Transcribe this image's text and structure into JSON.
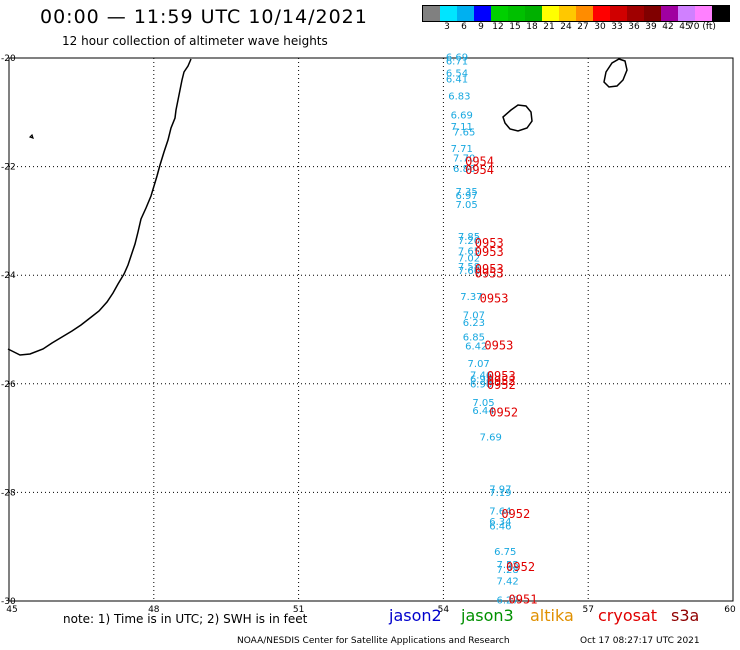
{
  "header": {
    "title": "00:00 — 11:59 UTC 10/14/2021",
    "subtitle": "12 hour collection of altimeter wave heights"
  },
  "scale": {
    "colors": [
      "#808080",
      "#00e5ff",
      "#00b0f0",
      "#0000ff",
      "#00d000",
      "#00c000",
      "#00b000",
      "#ffff00",
      "#ffc800",
      "#ff8c00",
      "#ff0000",
      "#d00000",
      "#a00000",
      "#800000",
      "#a000a0",
      "#d080ff",
      "#ff80ff",
      "#000000"
    ],
    "labels": [
      "3",
      "6",
      "9",
      "12",
      "15",
      "18",
      "21",
      "24",
      "27",
      "30",
      "33",
      "36",
      "39",
      "42",
      "45",
      "70 (ft)"
    ]
  },
  "axes": {
    "x_labels": [
      "45",
      "48",
      "51",
      "54",
      "57",
      "60"
    ],
    "y_labels": [
      "-20",
      "-22",
      "-24",
      "-26",
      "-28",
      "-30"
    ]
  },
  "map": {
    "lon_range": [
      45,
      60
    ],
    "lat_range": [
      -30,
      -20
    ],
    "swh_color": "#18a8e0",
    "time_color": "#e00000",
    "swh": [
      {
        "lon": 54.05,
        "lat": -20.05,
        "v": "6.69"
      },
      {
        "lon": 54.05,
        "lat": -20.12,
        "v": "6.71"
      },
      {
        "lon": 54.05,
        "lat": -20.34,
        "v": "6.54"
      },
      {
        "lon": 54.05,
        "lat": -20.45,
        "v": "6.41"
      },
      {
        "lon": 54.1,
        "lat": -20.76,
        "v": "6.83"
      },
      {
        "lon": 54.15,
        "lat": -21.11,
        "v": "6.69"
      },
      {
        "lon": 54.15,
        "lat": -21.33,
        "v": "7.11"
      },
      {
        "lon": 54.2,
        "lat": -21.43,
        "v": "7.65"
      },
      {
        "lon": 54.15,
        "lat": -21.73,
        "v": "7.71"
      },
      {
        "lon": 54.2,
        "lat": -21.91,
        "v": "7.70"
      },
      {
        "lon": 54.2,
        "lat": -22.1,
        "v": "6.86"
      },
      {
        "lon": 54.25,
        "lat": -22.52,
        "v": "7.35"
      },
      {
        "lon": 54.25,
        "lat": -22.6,
        "v": "6.97"
      },
      {
        "lon": 54.25,
        "lat": -22.76,
        "v": "7.05"
      },
      {
        "lon": 54.3,
        "lat": -23.35,
        "v": "7.85"
      },
      {
        "lon": 54.3,
        "lat": -23.43,
        "v": "7.20"
      },
      {
        "lon": 54.3,
        "lat": -23.62,
        "v": "7.65"
      },
      {
        "lon": 54.3,
        "lat": -23.75,
        "v": "7.02"
      },
      {
        "lon": 54.3,
        "lat": -23.9,
        "v": "7.58"
      },
      {
        "lon": 54.3,
        "lat": -23.98,
        "v": "7.66"
      },
      {
        "lon": 54.35,
        "lat": -24.46,
        "v": "7.37"
      },
      {
        "lon": 54.4,
        "lat": -24.8,
        "v": "7.07"
      },
      {
        "lon": 54.4,
        "lat": -24.94,
        "v": "6.23"
      },
      {
        "lon": 54.4,
        "lat": -25.2,
        "v": "6.85"
      },
      {
        "lon": 54.45,
        "lat": -25.37,
        "v": "6.42"
      },
      {
        "lon": 54.5,
        "lat": -25.69,
        "v": "7.07"
      },
      {
        "lon": 54.55,
        "lat": -25.9,
        "v": "7.46"
      },
      {
        "lon": 54.55,
        "lat": -25.98,
        "v": "6.98"
      },
      {
        "lon": 54.55,
        "lat": -26.07,
        "v": "6.90"
      },
      {
        "lon": 54.6,
        "lat": -26.41,
        "v": "7.05"
      },
      {
        "lon": 54.6,
        "lat": -26.56,
        "v": "6.44"
      },
      {
        "lon": 54.75,
        "lat": -27.04,
        "v": "7.69"
      },
      {
        "lon": 54.95,
        "lat": -28.0,
        "v": "7.97"
      },
      {
        "lon": 54.95,
        "lat": -28.07,
        "v": "7.19"
      },
      {
        "lon": 54.95,
        "lat": -28.41,
        "v": "7.64"
      },
      {
        "lon": 54.95,
        "lat": -28.6,
        "v": "6.34"
      },
      {
        "lon": 54.95,
        "lat": -28.68,
        "v": "6.46"
      },
      {
        "lon": 55.05,
        "lat": -29.15,
        "v": "6.75"
      },
      {
        "lon": 55.1,
        "lat": -29.39,
        "v": "7.55"
      },
      {
        "lon": 55.1,
        "lat": -29.48,
        "v": "7.28"
      },
      {
        "lon": 55.1,
        "lat": -29.7,
        "v": "7.42"
      },
      {
        "lon": 55.1,
        "lat": -30.05,
        "v": "6.27"
      }
    ],
    "times": [
      {
        "lon": 54.45,
        "lat": -21.98,
        "v": "0954"
      },
      {
        "lon": 54.45,
        "lat": -22.14,
        "v": "0954"
      },
      {
        "lon": 54.65,
        "lat": -23.48,
        "v": "0953"
      },
      {
        "lon": 54.65,
        "lat": -23.65,
        "v": "0953"
      },
      {
        "lon": 54.65,
        "lat": -23.96,
        "v": "0953"
      },
      {
        "lon": 54.65,
        "lat": -24.04,
        "v": "0953"
      },
      {
        "lon": 54.75,
        "lat": -24.5,
        "v": "0953"
      },
      {
        "lon": 54.85,
        "lat": -25.37,
        "v": "0953"
      },
      {
        "lon": 54.9,
        "lat": -25.93,
        "v": "0953"
      },
      {
        "lon": 54.9,
        "lat": -26.02,
        "v": "0952"
      },
      {
        "lon": 54.9,
        "lat": -26.1,
        "v": "0952"
      },
      {
        "lon": 54.95,
        "lat": -26.6,
        "v": "0952"
      },
      {
        "lon": 55.2,
        "lat": -28.47,
        "v": "0952"
      },
      {
        "lon": 55.3,
        "lat": -29.45,
        "v": "0952"
      },
      {
        "lon": 55.35,
        "lat": -30.05,
        "v": "0951"
      }
    ]
  },
  "footer": {
    "note": "note: 1) Time is in UTC; 2) SWH is in feet",
    "sats": [
      {
        "name": "jason2",
        "color": "#0000cc"
      },
      {
        "name": "jason3",
        "color": "#009000"
      },
      {
        "name": "altika",
        "color": "#e09000"
      },
      {
        "name": "cryosat",
        "color": "#e00000"
      },
      {
        "name": "s3a",
        "color": "#900000"
      }
    ],
    "credit": "NOAA/NESDIS Center for Satellite Applications and Research",
    "timestamp": "Oct 17 08:27:17 UTC 2021"
  }
}
